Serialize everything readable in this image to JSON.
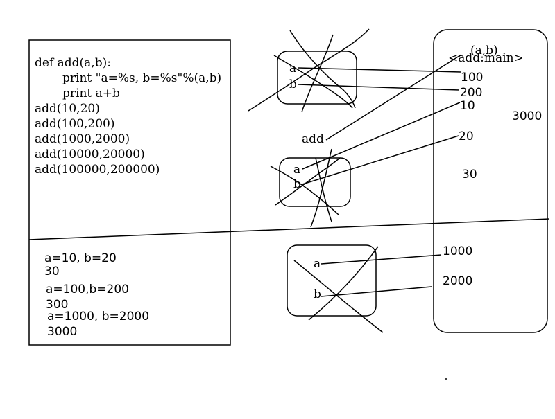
{
  "code": {
    "line1": "def add(a,b):",
    "line2": "print \"a=%s, b=%s\"%(a,b)",
    "line3": "print a+b",
    "calls": [
      "add(10,20)",
      "add(100,200)",
      "add(1000,2000)",
      "add(10000,20000)",
      "add(100000,200000)"
    ]
  },
  "output": {
    "lines": [
      "a=10,  b=20",
      "30",
      "a=100,b=200",
      "300",
      "a=1000,  b=2000",
      "3000"
    ]
  },
  "frames": {
    "frame1": {
      "a": "a",
      "b": "b"
    },
    "frame2": {
      "a": "a",
      "b": "b"
    },
    "frame3": {
      "a": "a",
      "b": "b"
    },
    "add_label": "add"
  },
  "heap": {
    "params": "(a,b)",
    "main_label": "<add:main>",
    "values": [
      "100",
      "200",
      "10",
      "3000",
      "20",
      "30",
      "1000",
      "2000"
    ]
  }
}
